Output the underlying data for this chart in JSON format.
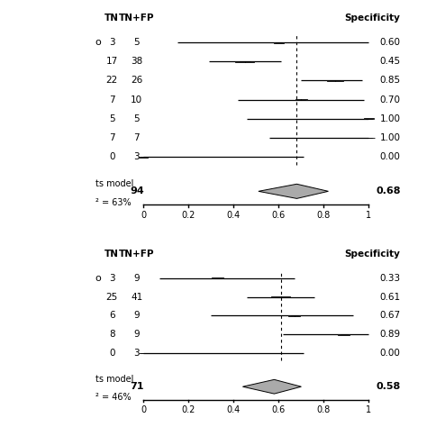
{
  "panel1": {
    "rows": [
      {
        "tn": 3,
        "tnfp": 5,
        "spec": 0.6,
        "ci_low": 0.15,
        "ci_high": 1.0
      },
      {
        "tn": 17,
        "tnfp": 38,
        "spec": 0.45,
        "ci_low": 0.29,
        "ci_high": 0.61
      },
      {
        "tn": 22,
        "tnfp": 26,
        "spec": 0.85,
        "ci_low": 0.7,
        "ci_high": 0.97
      },
      {
        "tn": 7,
        "tnfp": 10,
        "spec": 0.7,
        "ci_low": 0.42,
        "ci_high": 0.98
      },
      {
        "tn": 5,
        "tnfp": 5,
        "spec": 1.0,
        "ci_low": 0.46,
        "ci_high": 1.0
      },
      {
        "tn": 7,
        "tnfp": 7,
        "spec": 1.0,
        "ci_low": 0.56,
        "ci_high": 1.0
      },
      {
        "tn": 0,
        "tnfp": 3,
        "spec": 0.0,
        "ci_low": 0.0,
        "ci_high": 0.71
      }
    ],
    "summary_tnfp": 94,
    "summary_spec": 0.68,
    "summary_ci_low": 0.51,
    "summary_ci_high": 0.82,
    "dotted_line": 0.68,
    "model_text1": "ts model",
    "model_text2": "² = 63%"
  },
  "panel2": {
    "rows": [
      {
        "tn": 3,
        "tnfp": 9,
        "spec": 0.33,
        "ci_low": 0.07,
        "ci_high": 0.67
      },
      {
        "tn": 25,
        "tnfp": 41,
        "spec": 0.61,
        "ci_low": 0.46,
        "ci_high": 0.76
      },
      {
        "tn": 6,
        "tnfp": 9,
        "spec": 0.67,
        "ci_low": 0.3,
        "ci_high": 0.93
      },
      {
        "tn": 8,
        "tnfp": 9,
        "spec": 0.89,
        "ci_low": 0.62,
        "ci_high": 1.0
      },
      {
        "tn": 0,
        "tnfp": 3,
        "spec": 0.0,
        "ci_low": 0.0,
        "ci_high": 0.71
      }
    ],
    "summary_tnfp": 71,
    "summary_spec": 0.58,
    "summary_ci_low": 0.44,
    "summary_ci_high": 0.7,
    "dotted_line": 0.61,
    "model_text1": "ts model",
    "model_text2": "² = 46%"
  },
  "box_color": "#aaaaaa",
  "diamond_color": "#aaaaaa",
  "tick_vals": [
    0.0,
    0.2,
    0.4,
    0.6,
    0.8,
    1.0
  ],
  "tick_labels": [
    "0",
    "0.2",
    "0.4",
    "0.6",
    "0.8",
    "1"
  ]
}
